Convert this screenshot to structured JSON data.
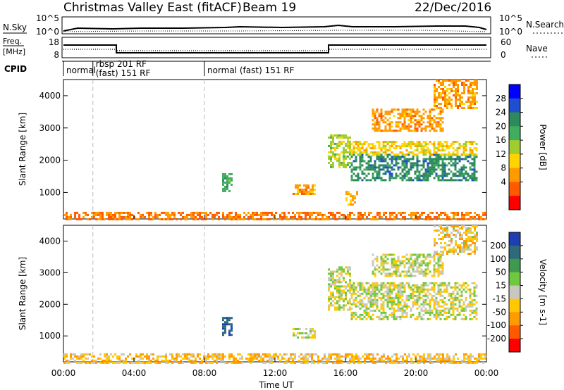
{
  "header": {
    "title": "Christmas Valley East (fitACF)",
    "beam": "Beam 19",
    "date": "22/Dec/2016"
  },
  "noise_panel": {
    "left_label": "N.Sky",
    "right_label": "N.Search",
    "ticks": [
      "10^5",
      "10^0"
    ]
  },
  "freq_panel": {
    "left_label_1": "Freq.",
    "left_label_2": "[MHz]",
    "left_ticks": [
      "18",
      "8"
    ],
    "right_ticks": [
      "60",
      "0"
    ],
    "right_label": "Nave"
  },
  "cpid": {
    "label": "CPID",
    "modes": [
      {
        "start_hour": 0.0,
        "line1": "normal",
        "line2": ""
      },
      {
        "start_hour": 1.67,
        "line1": "rbsp 201 RF",
        "line2": "(fast) 151 RF"
      },
      {
        "start_hour": 8.0,
        "line1": "normal (fast) 151 RF",
        "line2": ""
      }
    ]
  },
  "x_axis": {
    "label": "Time UT",
    "tick_labels": [
      "00:00",
      "04:00",
      "08:00",
      "12:00",
      "16:00",
      "20:00",
      "00:00"
    ],
    "range_hours": [
      0,
      24
    ]
  },
  "chart_data": [
    {
      "type": "heatmap",
      "name": "power",
      "ylabel": "Slant Range [km]",
      "ylim": [
        180,
        4500
      ],
      "yticks": [
        1000,
        2000,
        3000,
        4000
      ],
      "colorbar_label": "Power [dB]",
      "colorbar_ticks": [
        4,
        8,
        12,
        16,
        20,
        24,
        28
      ],
      "colorbar_colors": [
        "#0000ff",
        "#1f4fd0",
        "#2e8a5a",
        "#3fae5f",
        "#9fcc2f",
        "#ffd400",
        "#ff9a00",
        "#ff5a00",
        "#ff0000"
      ],
      "regions": [
        {
          "t0": 9.0,
          "t1": 9.5,
          "r0": 1050,
          "r1": 1600,
          "value": 22
        },
        {
          "t0": 13.0,
          "t1": 14.3,
          "r0": 950,
          "r1": 1250,
          "value": 10
        },
        {
          "t0": 15.0,
          "t1": 16.3,
          "r0": 1800,
          "r1": 2800,
          "value": 18
        },
        {
          "t0": 16.3,
          "t1": 23.5,
          "r0": 1400,
          "r1": 2200,
          "value": 26
        },
        {
          "t0": 16.3,
          "t1": 23.5,
          "r0": 2200,
          "r1": 2600,
          "value": 14
        },
        {
          "t0": 16.0,
          "t1": 16.6,
          "r0": 600,
          "r1": 1050,
          "value": 12
        },
        {
          "t0": 17.5,
          "t1": 21.5,
          "r0": 2900,
          "r1": 3600,
          "value": 10
        },
        {
          "t0": 21.0,
          "t1": 23.5,
          "r0": 3600,
          "r1": 4500,
          "value": 10
        },
        {
          "t0": 0.0,
          "t1": 24.0,
          "r0": 180,
          "r1": 400,
          "value": 8
        }
      ]
    },
    {
      "type": "heatmap",
      "name": "velocity",
      "ylabel": "Slant Range [km]",
      "ylim": [
        180,
        4500
      ],
      "yticks": [
        1000,
        2000,
        3000,
        4000
      ],
      "colorbar_label": "Velocity [m s-1]",
      "colorbar_ticks": [
        200,
        100,
        50,
        15,
        -15,
        -50,
        -100,
        -200
      ],
      "colorbar_colors": [
        "#1f3fb0",
        "#2e6a7a",
        "#3f9a50",
        "#6fc83f",
        "#c8c8c0",
        "#ffc800",
        "#ff9a00",
        "#ff5a00",
        "#ff0000"
      ],
      "regions": [
        {
          "t0": 9.0,
          "t1": 9.5,
          "r0": 1050,
          "r1": 1600,
          "value": 180
        },
        {
          "t0": 13.0,
          "t1": 14.3,
          "r0": 950,
          "r1": 1250,
          "value": 0
        },
        {
          "t0": 15.0,
          "t1": 16.3,
          "r0": 1800,
          "r1": 3200,
          "value": 0
        },
        {
          "t0": 16.3,
          "t1": 23.5,
          "r0": 1500,
          "r1": 2700,
          "value": 0
        },
        {
          "t0": 17.5,
          "t1": 21.5,
          "r0": 2900,
          "r1": 3600,
          "value": 0
        },
        {
          "t0": 21.0,
          "t1": 23.5,
          "r0": 3600,
          "r1": 4500,
          "value": -30
        },
        {
          "t0": 0.0,
          "t1": 24.0,
          "r0": 180,
          "r1": 450,
          "value": -40
        }
      ]
    }
  ]
}
